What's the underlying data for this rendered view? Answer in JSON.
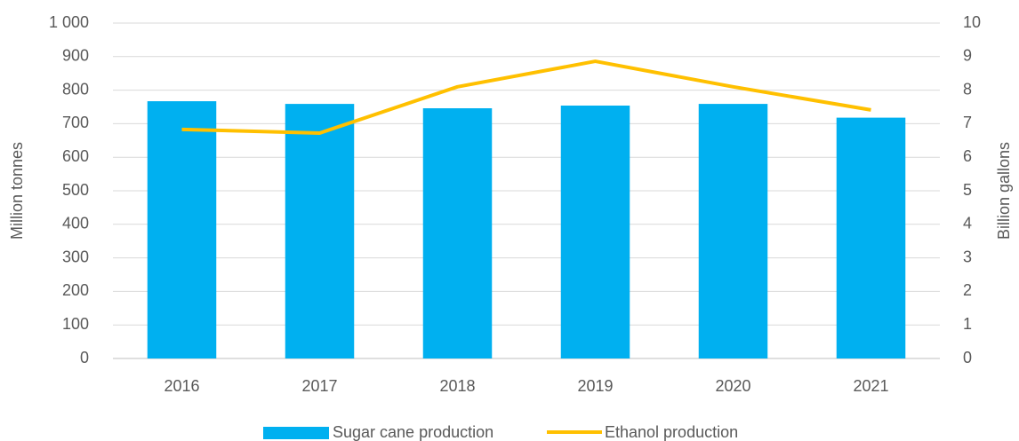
{
  "chart_data": {
    "type": "bar",
    "categories": [
      "2016",
      "2017",
      "2018",
      "2019",
      "2020",
      "2021"
    ],
    "series": [
      {
        "name": "Sugar cane production",
        "color": "#00b0f0",
        "values": [
          767,
          759,
          746,
          754,
          759,
          718
        ]
      },
      {
        "name": "Ethanol production",
        "color": "#ffc000",
        "type": "line",
        "axis": "y2",
        "values": [
          6.83,
          6.72,
          8.1,
          8.86,
          8.1,
          7.41
        ]
      }
    ],
    "ylabel": "Million tonnes",
    "y2label": "Billion gallons",
    "ylim": [
      0,
      1000
    ],
    "yticks": [
      0,
      100,
      200,
      300,
      400,
      500,
      600,
      700,
      800,
      900,
      {
        "value": 1000,
        "label": "1 000"
      }
    ],
    "y2lim": [
      0,
      10
    ],
    "y2ticks": [
      0,
      1,
      2,
      3,
      4,
      5,
      6,
      7,
      8,
      9,
      10
    ],
    "grid": true,
    "legend": "bottom"
  }
}
